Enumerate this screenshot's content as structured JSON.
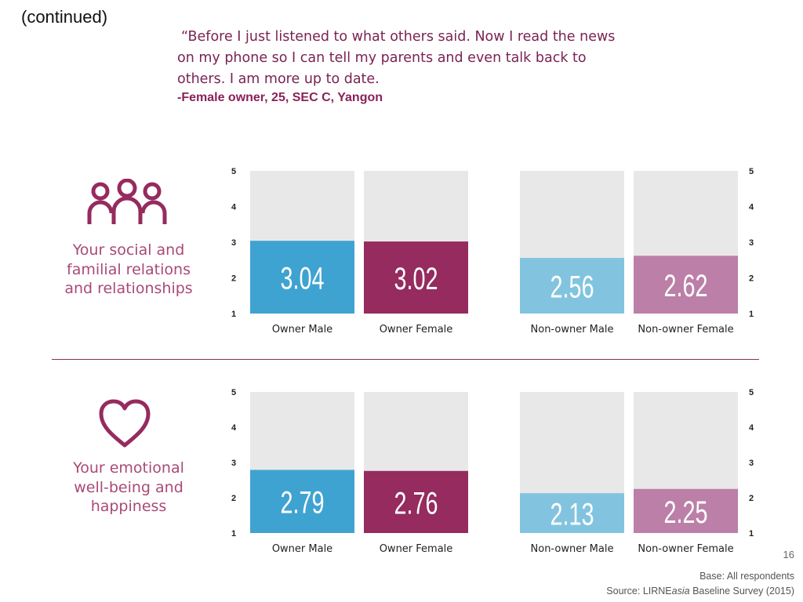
{
  "header": {
    "continued": "(continued)",
    "quote_lines": [
      "“Before I just listened to what others said. Now I read the news",
      "on my phone so I can tell my parents and even talk back to",
      "others. I am more up to date."
    ],
    "attribution": "-Female owner, 25, SEC C, Yangon"
  },
  "sections": [
    {
      "label": "Your social and\nfamilial relations\nand relationships",
      "icon": "people-group-icon"
    },
    {
      "label": "Your emotional\nwell-being and\nhappiness",
      "icon": "heart-icon"
    }
  ],
  "chart_data": [
    {
      "type": "bar",
      "title": "Your social and familial relations and relationships",
      "categories": [
        "Owner Male",
        "Owner Female",
        "Non-owner Male",
        "Non-owner Female"
      ],
      "values": [
        3.04,
        3.02,
        2.56,
        2.62
      ],
      "value_labels": [
        "3.04",
        "3.02",
        "2.56",
        "2.62"
      ],
      "ylim": [
        1,
        5
      ],
      "yticks": [
        "1",
        "2",
        "3",
        "4",
        "5"
      ],
      "colors": [
        "#3fa3d1",
        "#952b5e",
        "#82c4df",
        "#bc7fa8"
      ]
    },
    {
      "type": "bar",
      "title": "Your emotional well-being and happiness",
      "categories": [
        "Owner Male",
        "Owner Female",
        "Non-owner Male",
        "Non-owner Female"
      ],
      "values": [
        2.79,
        2.76,
        2.13,
        2.25
      ],
      "value_labels": [
        "2.79",
        "2.76",
        "2.13",
        "2.25"
      ],
      "ylim": [
        1,
        5
      ],
      "yticks": [
        "1",
        "2",
        "3",
        "4",
        "5"
      ],
      "colors": [
        "#3fa3d1",
        "#952b5e",
        "#82c4df",
        "#bc7fa8"
      ]
    }
  ],
  "colors": {
    "accent": "#952b5e",
    "bar_background": "#e9e8e9",
    "section_label": "#a94a76",
    "divider": "#8a2f5b"
  },
  "footer": {
    "page_number": "16",
    "base": "Base: All respondents",
    "source_prefix": "Source: LIRNE",
    "source_italic": "asia",
    "source_suffix": " Baseline Survey (2015)"
  }
}
